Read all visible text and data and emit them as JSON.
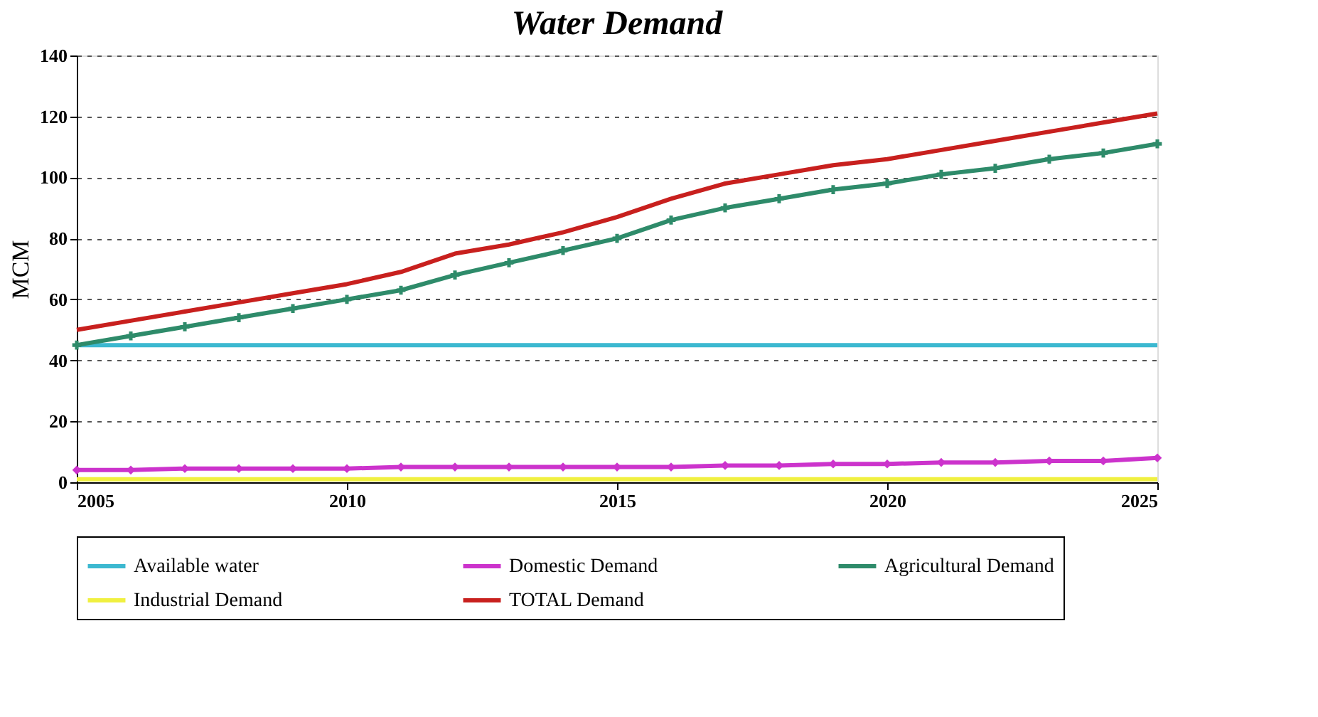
{
  "chart_data": {
    "type": "line",
    "title": "Water Demand",
    "ylabel": "MCM",
    "x": [
      2005,
      2006,
      2007,
      2008,
      2009,
      2010,
      2011,
      2012,
      2013,
      2014,
      2015,
      2016,
      2017,
      2018,
      2019,
      2020,
      2021,
      2022,
      2023,
      2024,
      2025
    ],
    "xlim": [
      2005,
      2025
    ],
    "xticks": [
      2005,
      2010,
      2015,
      2020,
      2025
    ],
    "ylim": [
      0,
      140
    ],
    "yticks": [
      0,
      20,
      40,
      60,
      80,
      100,
      120,
      140
    ],
    "grid": "y",
    "legend": "bottom",
    "series": [
      {
        "name": "Available water",
        "color": "#3cb8d0",
        "marker": "none",
        "values": [
          45,
          45,
          45,
          45,
          45,
          45,
          45,
          45,
          45,
          45,
          45,
          45,
          45,
          45,
          45,
          45,
          45,
          45,
          45,
          45,
          45
        ]
      },
      {
        "name": "Domestic Demand",
        "color": "#cc33cc",
        "marker": "diamond",
        "values": [
          4,
          4,
          4.5,
          4.5,
          4.5,
          4.5,
          5,
          5,
          5,
          5,
          5,
          5,
          5.5,
          5.5,
          6,
          6,
          6.5,
          6.5,
          7,
          7,
          8
        ]
      },
      {
        "name": "Agricultural Demand",
        "color": "#2e8b6a",
        "marker": "cross",
        "values": [
          45,
          48,
          51,
          54,
          57,
          60,
          63,
          68,
          72,
          76,
          80,
          86,
          90,
          93,
          96,
          98,
          101,
          103,
          106,
          108,
          111
        ]
      },
      {
        "name": "Industrial Demand",
        "color": "#f0f040",
        "marker": "none",
        "values": [
          1,
          1,
          1,
          1,
          1,
          1,
          1,
          1,
          1,
          1,
          1,
          1,
          1,
          1,
          1,
          1,
          1,
          1,
          1,
          1,
          1
        ]
      },
      {
        "name": "TOTAL Demand",
        "color": "#c8201e",
        "marker": "none",
        "values": [
          50,
          53,
          56,
          59,
          62,
          65,
          69,
          75,
          78,
          82,
          87,
          93,
          98,
          101,
          104,
          106,
          109,
          112,
          115,
          118,
          121
        ]
      }
    ]
  }
}
